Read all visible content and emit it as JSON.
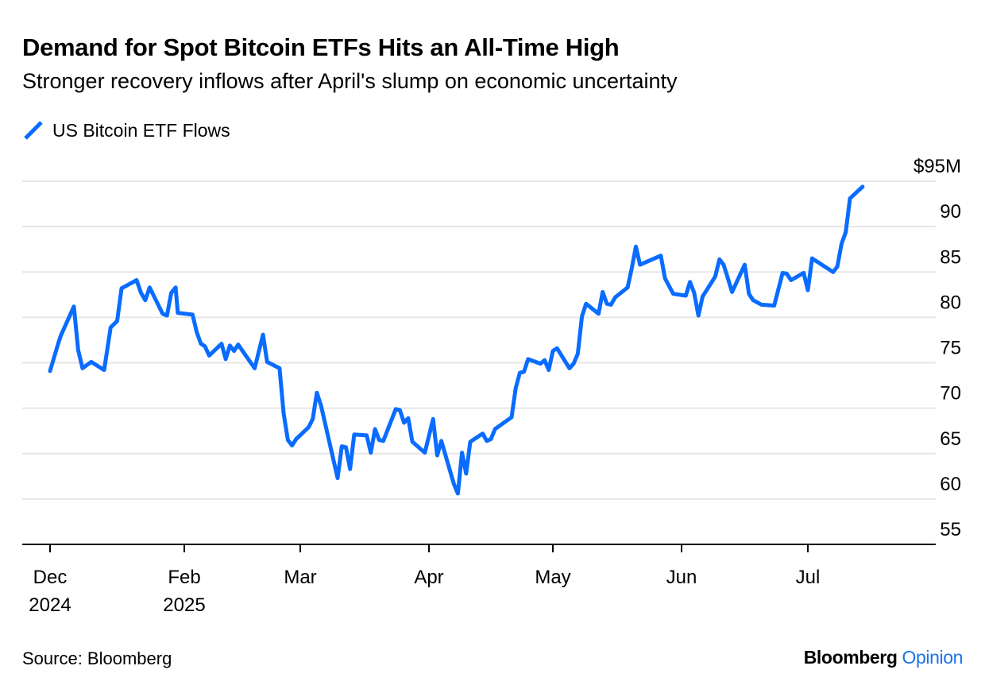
{
  "title": "Demand for Spot Bitcoin ETFs Hits an All-Time High",
  "subtitle": "Stronger recovery inflows after April's slump on economic uncertainty",
  "source": "Source: Bloomberg",
  "logo": {
    "brand": "Bloomberg",
    "product": "Opinion"
  },
  "colors": {
    "line": "#0a6cff",
    "grid": "#e6e6e6",
    "axis": "#000000"
  },
  "chart_data": {
    "type": "line",
    "title": "Demand for Spot Bitcoin ETFs Hits an All-Time High",
    "subtitle": "Stronger recovery inflows after April's slump on economic uncertainty",
    "legend": {
      "position": "top-left",
      "entries": [
        "US Bitcoin ETF Flows"
      ]
    },
    "grid": true,
    "y_unit_label": "$95M",
    "ylim": [
      55,
      95
    ],
    "y_ticks": [
      {
        "value": 95,
        "label": "$95M"
      },
      {
        "value": 90,
        "label": "90"
      },
      {
        "value": 85,
        "label": "85"
      },
      {
        "value": 80,
        "label": "80"
      },
      {
        "value": 75,
        "label": "75"
      },
      {
        "value": 70,
        "label": "70"
      },
      {
        "value": 65,
        "label": "65"
      },
      {
        "value": 60,
        "label": "60"
      },
      {
        "value": 55,
        "label": "55"
      }
    ],
    "x_ticks": [
      {
        "date": "2024-12-01",
        "label": "Dec",
        "sublabel": "2024"
      },
      {
        "date": "2025-02-01",
        "label": "Feb",
        "sublabel": "2025"
      },
      {
        "date": "2025-03-01",
        "label": "Mar",
        "sublabel": ""
      },
      {
        "date": "2025-04-01",
        "label": "Apr",
        "sublabel": ""
      },
      {
        "date": "2025-05-01",
        "label": "May",
        "sublabel": ""
      },
      {
        "date": "2025-06-01",
        "label": "Jun",
        "sublabel": ""
      },
      {
        "date": "2025-07-01",
        "label": "Jul",
        "sublabel": ""
      }
    ],
    "series": [
      {
        "name": "US Bitcoin ETF Flows",
        "points": [
          [
            "2024-12-01",
            74.1
          ],
          [
            "2024-12-05",
            77.3
          ],
          [
            "2024-12-06",
            78.0
          ],
          [
            "2024-12-12",
            81.2
          ],
          [
            "2024-12-14",
            76.4
          ],
          [
            "2024-12-16",
            74.4
          ],
          [
            "2024-12-20",
            75.1
          ],
          [
            "2024-12-26",
            74.2
          ],
          [
            "2024-12-29",
            78.9
          ],
          [
            "2025-01-01",
            79.6
          ],
          [
            "2025-01-03",
            83.2
          ],
          [
            "2025-01-10",
            84.1
          ],
          [
            "2025-01-12",
            82.7
          ],
          [
            "2025-01-14",
            81.9
          ],
          [
            "2025-01-16",
            83.3
          ],
          [
            "2025-01-22",
            80.4
          ],
          [
            "2025-01-24",
            80.2
          ],
          [
            "2025-01-26",
            82.7
          ],
          [
            "2025-01-28",
            83.3
          ],
          [
            "2025-01-29",
            80.5
          ],
          [
            "2025-02-03",
            80.3
          ],
          [
            "2025-02-04",
            78.4
          ],
          [
            "2025-02-05",
            77.1
          ],
          [
            "2025-02-06",
            76.8
          ],
          [
            "2025-02-07",
            75.8
          ],
          [
            "2025-02-10",
            77.1
          ],
          [
            "2025-02-11",
            75.4
          ],
          [
            "2025-02-12",
            76.9
          ],
          [
            "2025-02-13",
            76.3
          ],
          [
            "2025-02-14",
            77.0
          ],
          [
            "2025-02-18",
            74.4
          ],
          [
            "2025-02-20",
            78.1
          ],
          [
            "2025-02-21",
            75.1
          ],
          [
            "2025-02-24",
            74.4
          ],
          [
            "2025-02-25",
            69.4
          ],
          [
            "2025-02-26",
            66.5
          ],
          [
            "2025-02-27",
            65.9
          ],
          [
            "2025-02-28",
            66.6
          ],
          [
            "2025-03-03",
            67.9
          ],
          [
            "2025-03-04",
            68.8
          ],
          [
            "2025-03-05",
            71.7
          ],
          [
            "2025-03-06",
            70.3
          ],
          [
            "2025-03-10",
            62.3
          ],
          [
            "2025-03-11",
            65.8
          ],
          [
            "2025-03-12",
            65.7
          ],
          [
            "2025-03-13",
            63.3
          ],
          [
            "2025-03-14",
            67.1
          ],
          [
            "2025-03-17",
            67.0
          ],
          [
            "2025-03-18",
            65.1
          ],
          [
            "2025-03-19",
            67.7
          ],
          [
            "2025-03-20",
            66.5
          ],
          [
            "2025-03-21",
            66.4
          ],
          [
            "2025-03-24",
            69.9
          ],
          [
            "2025-03-25",
            69.8
          ],
          [
            "2025-03-26",
            68.4
          ],
          [
            "2025-03-27",
            68.9
          ],
          [
            "2025-03-28",
            66.3
          ],
          [
            "2025-03-31",
            65.1
          ],
          [
            "2025-04-02",
            68.8
          ],
          [
            "2025-04-03",
            64.8
          ],
          [
            "2025-04-04",
            66.4
          ],
          [
            "2025-04-07",
            61.7
          ],
          [
            "2025-04-08",
            60.6
          ],
          [
            "2025-04-09",
            65.1
          ],
          [
            "2025-04-10",
            62.8
          ],
          [
            "2025-04-11",
            66.3
          ],
          [
            "2025-04-14",
            67.2
          ],
          [
            "2025-04-15",
            66.4
          ],
          [
            "2025-04-16",
            66.6
          ],
          [
            "2025-04-17",
            67.7
          ],
          [
            "2025-04-21",
            69.0
          ],
          [
            "2025-04-22",
            72.2
          ],
          [
            "2025-04-23",
            73.9
          ],
          [
            "2025-04-24",
            74.0
          ],
          [
            "2025-04-25",
            75.4
          ],
          [
            "2025-04-28",
            74.9
          ],
          [
            "2025-04-29",
            75.3
          ],
          [
            "2025-04-30",
            74.2
          ],
          [
            "2025-05-01",
            76.3
          ],
          [
            "2025-05-02",
            76.6
          ],
          [
            "2025-05-05",
            74.4
          ],
          [
            "2025-05-06",
            74.9
          ],
          [
            "2025-05-07",
            76.0
          ],
          [
            "2025-05-08",
            80.1
          ],
          [
            "2025-05-09",
            81.5
          ],
          [
            "2025-05-12",
            80.4
          ],
          [
            "2025-05-13",
            82.8
          ],
          [
            "2025-05-14",
            81.5
          ],
          [
            "2025-05-15",
            81.4
          ],
          [
            "2025-05-16",
            82.2
          ],
          [
            "2025-05-19",
            83.3
          ],
          [
            "2025-05-20",
            85.4
          ],
          [
            "2025-05-21",
            87.8
          ],
          [
            "2025-05-22",
            85.8
          ],
          [
            "2025-05-27",
            86.8
          ],
          [
            "2025-05-28",
            84.3
          ],
          [
            "2025-05-30",
            82.6
          ],
          [
            "2025-06-02",
            82.4
          ],
          [
            "2025-06-03",
            83.9
          ],
          [
            "2025-06-04",
            82.7
          ],
          [
            "2025-06-05",
            80.2
          ],
          [
            "2025-06-06",
            82.3
          ],
          [
            "2025-06-09",
            84.5
          ],
          [
            "2025-06-10",
            86.4
          ],
          [
            "2025-06-11",
            85.8
          ],
          [
            "2025-06-13",
            82.8
          ],
          [
            "2025-06-16",
            85.8
          ],
          [
            "2025-06-17",
            82.6
          ],
          [
            "2025-06-18",
            81.9
          ],
          [
            "2025-06-20",
            81.4
          ],
          [
            "2025-06-23",
            81.3
          ],
          [
            "2025-06-25",
            84.9
          ],
          [
            "2025-06-26",
            84.8
          ],
          [
            "2025-06-27",
            84.1
          ],
          [
            "2025-06-30",
            84.9
          ],
          [
            "2025-07-01",
            83.0
          ],
          [
            "2025-07-02",
            86.5
          ],
          [
            "2025-07-07",
            85.0
          ],
          [
            "2025-07-08",
            85.6
          ],
          [
            "2025-07-09",
            88.1
          ],
          [
            "2025-07-10",
            89.4
          ],
          [
            "2025-07-11",
            93.1
          ],
          [
            "2025-07-14",
            94.4
          ]
        ]
      }
    ]
  }
}
